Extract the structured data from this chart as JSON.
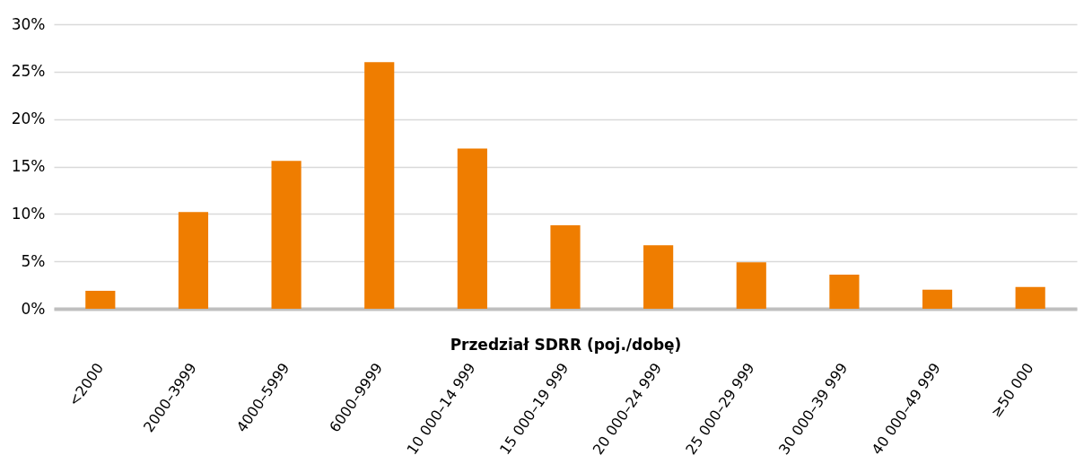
{
  "chart_data": {
    "type": "bar",
    "xlabel": "Przedział SDRR (poj./dobę)",
    "categories": [
      "<2000",
      "2000–3999",
      "4000–5999",
      "6000–9999",
      "10 000–14 999",
      "15 000–19 999",
      "20 000–24 999",
      "25 000–29 999",
      "30 000–39 999",
      "40 000–49 999",
      "≥50 000"
    ],
    "values": [
      1.9,
      10.2,
      15.6,
      26.0,
      16.9,
      8.8,
      6.7,
      4.9,
      3.6,
      2.0,
      2.3
    ],
    "color": "#ef7d00",
    "ylim": [
      0,
      30
    ],
    "yticks": [
      {
        "value": 0,
        "label": "0%"
      },
      {
        "value": 5,
        "label": "5%"
      },
      {
        "value": 10,
        "label": "10%"
      },
      {
        "value": 15,
        "label": "15%"
      },
      {
        "value": 20,
        "label": "20%"
      },
      {
        "value": 25,
        "label": "25%"
      },
      {
        "value": 30,
        "label": "30%"
      }
    ],
    "grid": true
  }
}
